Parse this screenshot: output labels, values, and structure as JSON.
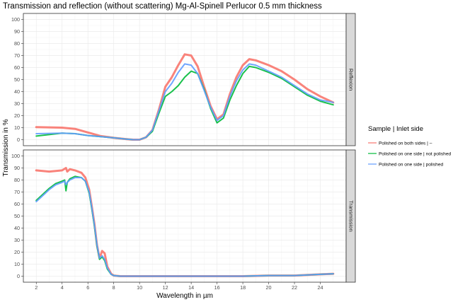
{
  "chart_data": {
    "type": "line",
    "title": "Transmission and reflection (without scattering) Mg-Al-Spinell Perlucor 0.5 mm thickness",
    "xlabel": "Wavelength in µm",
    "ylabel": "Transmission in %",
    "xlim": [
      1,
      26
    ],
    "ylim": [
      -5,
      105
    ],
    "x_ticks": [
      2,
      4,
      6,
      8,
      10,
      12,
      14,
      16,
      18,
      20,
      22,
      24
    ],
    "y_ticks": [
      0,
      10,
      20,
      30,
      40,
      50,
      60,
      70,
      80,
      90,
      100
    ],
    "grid": true,
    "facets": [
      "Reflexion",
      "Transmission"
    ],
    "legend": {
      "title": "Sample | Inlet side",
      "position": "right",
      "entries": [
        {
          "label": "Polished on both sides | –",
          "color": "#f8766d"
        },
        {
          "label": "Polished on one side | not polished",
          "color": "#00ba38"
        },
        {
          "label": "Polished on one side | polished",
          "color": "#619cff"
        }
      ]
    },
    "panels": [
      {
        "facet": "Reflexion",
        "series": [
          {
            "name": "Polished on both sides | –",
            "color": "#f8766d",
            "thickness": 3,
            "x": [
              2,
              4,
              5,
              6,
              7,
              8,
              9,
              9.5,
              10,
              10.5,
              11,
              11.5,
              12,
              12.5,
              13,
              13.5,
              14,
              14.5,
              15,
              15.5,
              16,
              16.5,
              17,
              17.5,
              18,
              18.5,
              19,
              20,
              21,
              22,
              23,
              24,
              25
            ],
            "y": [
              10.5,
              10,
              9,
              6,
              3,
              1.5,
              0.5,
              0,
              0,
              2,
              8,
              25,
              44,
              52,
              62,
              71,
              70,
              61,
              44,
              28,
              17,
              21,
              38,
              52,
              62,
              67,
              66,
              62,
              57,
              50,
              42,
              36,
              31
            ]
          },
          {
            "name": "Polished on one side | not polished",
            "color": "#00ba38",
            "thickness": 2,
            "x": [
              2,
              4,
              5,
              6,
              7,
              8,
              9,
              9.5,
              10,
              10.5,
              11,
              11.5,
              12,
              12.5,
              13,
              13.5,
              14,
              14.5,
              15,
              15.5,
              16,
              16.5,
              17,
              17.5,
              18,
              18.5,
              19,
              20,
              21,
              22,
              23,
              24,
              25
            ],
            "y": [
              3,
              5.5,
              5,
              3.5,
              2.5,
              1.5,
              0.5,
              0,
              0,
              2,
              7,
              22,
              36,
              40,
              45,
              52,
              57,
              55,
              42,
              26,
              14,
              18,
              33,
              45,
              55,
              61,
              60,
              56,
              51,
              44,
              37,
              32,
              29
            ]
          },
          {
            "name": "Polished on one side | polished",
            "color": "#619cff",
            "thickness": 2,
            "x": [
              2,
              4,
              5,
              6,
              7,
              8,
              9,
              9.5,
              10,
              10.5,
              11,
              11.5,
              12,
              12.5,
              13,
              13.5,
              14,
              14.5,
              15,
              15.5,
              16,
              16.5,
              17,
              17.5,
              18,
              18.5,
              19,
              20,
              21,
              22,
              23,
              24,
              25
            ],
            "y": [
              5,
              5.5,
              5,
              3.5,
              2.5,
              1.5,
              0.5,
              0,
              0,
              2,
              8,
              24,
              40,
              47,
              56,
              63,
              62,
              55,
              41,
              27,
              16,
              20,
              36,
              49,
              58,
              63,
              62,
              57,
              52,
              45,
              38,
              33,
              31
            ]
          }
        ]
      },
      {
        "facet": "Transmission",
        "series": [
          {
            "name": "Polished on both sides | –",
            "color": "#f8766d",
            "thickness": 3,
            "x": [
              2,
              3,
              4,
              4.3,
              4.4,
              4.6,
              5,
              5.5,
              5.8,
              6.1,
              6.3,
              6.5,
              6.7,
              6.9,
              7.1,
              7.3,
              7.5,
              7.8,
              8,
              8.5,
              9,
              10,
              12,
              14,
              16,
              18,
              20,
              22,
              23,
              24,
              25
            ],
            "y": [
              88,
              87,
              88,
              90,
              87,
              89,
              88,
              86,
              82,
              72,
              58,
              44,
              26,
              15,
              21,
              19,
              8,
              2,
              0.5,
              0,
              0,
              0,
              0,
              0,
              0,
              0,
              0.5,
              0.5,
              1,
              1.5,
              2
            ]
          },
          {
            "name": "Polished on one side | not polished",
            "color": "#00ba38",
            "thickness": 2,
            "x": [
              2,
              2.5,
              3,
              3.5,
              4,
              4.2,
              4.3,
              4.4,
              4.6,
              5,
              5.5,
              5.8,
              6.1,
              6.3,
              6.5,
              6.7,
              6.9,
              7.1,
              7.3,
              7.5,
              7.8,
              8,
              8.5,
              9,
              10,
              12,
              14,
              16,
              18,
              20,
              22,
              23,
              24,
              25
            ],
            "y": [
              63,
              68,
              73,
              77,
              79,
              80,
              71,
              78,
              81,
              83,
              82,
              79,
              69,
              56,
              42,
              25,
              14,
              16,
              13,
              6,
              1.5,
              0.5,
              0,
              0,
              0,
              0,
              0,
              0,
              0,
              0.5,
              0.5,
              1,
              1.5,
              2
            ]
          },
          {
            "name": "Polished on one side | polished",
            "color": "#619cff",
            "thickness": 2,
            "x": [
              2,
              2.5,
              3,
              3.5,
              4,
              4.2,
              4.3,
              4.4,
              4.6,
              5,
              5.5,
              5.8,
              6.1,
              6.3,
              6.5,
              6.7,
              6.9,
              7.1,
              7.3,
              7.5,
              7.8,
              8,
              8.5,
              9,
              10,
              12,
              14,
              16,
              18,
              20,
              22,
              23,
              24,
              25
            ],
            "y": [
              62,
              67,
              72,
              76,
              78,
              79,
              76,
              78,
              80,
              82,
              82,
              79,
              70,
              57,
              43,
              26,
              15,
              17,
              14,
              7,
              1.5,
              0.5,
              0,
              0,
              0,
              0,
              0,
              0,
              0,
              0.5,
              0.5,
              1,
              1.5,
              2
            ]
          }
        ]
      }
    ]
  }
}
